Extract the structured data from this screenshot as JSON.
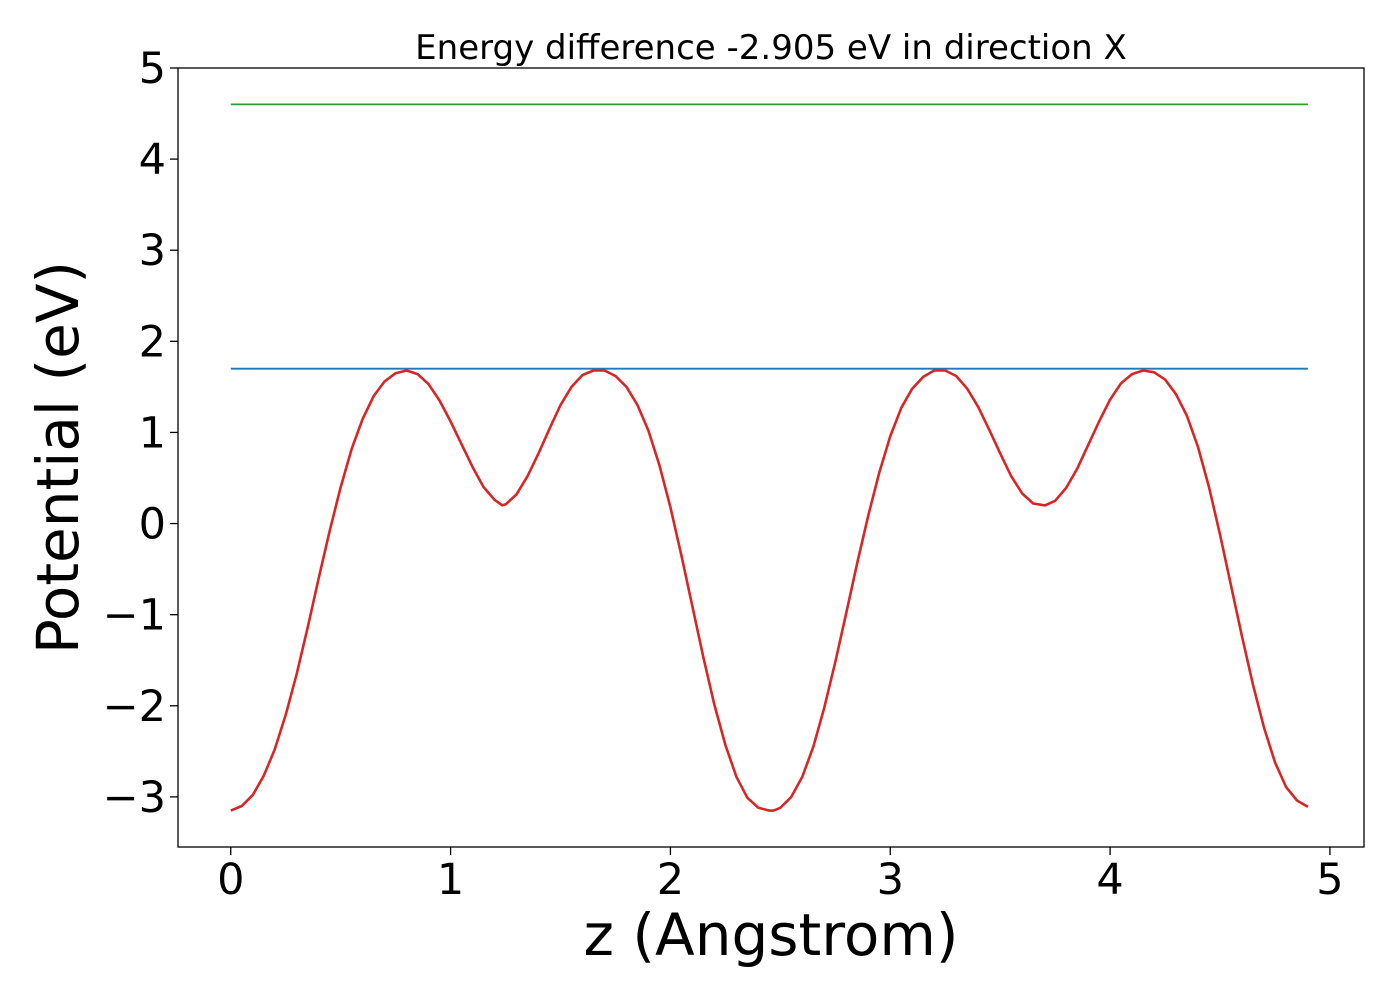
{
  "chart_data": {
    "type": "line",
    "title": "Energy difference -2.905 eV in direction X",
    "xlabel": "z (Angstrom)",
    "ylabel": "Potential (eV)",
    "xlim": [
      -0.24,
      5.155
    ],
    "ylim": [
      -3.55,
      5.0
    ],
    "xticks": [
      0,
      1,
      2,
      3,
      4,
      5
    ],
    "xtick_labels": [
      "0",
      "1",
      "2",
      "3",
      "4",
      "5"
    ],
    "yticks": [
      -3,
      -2,
      -1,
      0,
      1,
      2,
      3,
      4,
      5
    ],
    "ytick_labels": [
      "−3",
      "−2",
      "−1",
      "0",
      "1",
      "2",
      "3",
      "4",
      "5"
    ],
    "grid": false,
    "legend": "none",
    "series": [
      {
        "color": "#d62728",
        "x": [
          0.0,
          0.05,
          0.1,
          0.15,
          0.2,
          0.25,
          0.3,
          0.35,
          0.4,
          0.45,
          0.5,
          0.55,
          0.6,
          0.65,
          0.7,
          0.75,
          0.8,
          0.85,
          0.9,
          0.95,
          1.0,
          1.05,
          1.1,
          1.15,
          1.2,
          1.235,
          1.25,
          1.3,
          1.35,
          1.4,
          1.45,
          1.5,
          1.55,
          1.6,
          1.65,
          1.7,
          1.75,
          1.8,
          1.85,
          1.9,
          1.95,
          2.0,
          2.05,
          2.1,
          2.15,
          2.2,
          2.25,
          2.3,
          2.35,
          2.4,
          2.45,
          2.47,
          2.5,
          2.55,
          2.6,
          2.65,
          2.7,
          2.75,
          2.8,
          2.85,
          2.9,
          2.95,
          3.0,
          3.05,
          3.1,
          3.15,
          3.2,
          3.25,
          3.3,
          3.35,
          3.4,
          3.45,
          3.5,
          3.55,
          3.6,
          3.65,
          3.7,
          3.705,
          3.75,
          3.8,
          3.85,
          3.9,
          3.95,
          4.0,
          4.05,
          4.1,
          4.15,
          4.2,
          4.25,
          4.3,
          4.35,
          4.4,
          4.45,
          4.5,
          4.55,
          4.6,
          4.65,
          4.7,
          4.75,
          4.8,
          4.85,
          4.9
        ],
        "y": [
          -3.15,
          -3.1,
          -2.98,
          -2.77,
          -2.48,
          -2.1,
          -1.65,
          -1.14,
          -0.6,
          -0.08,
          0.4,
          0.82,
          1.15,
          1.4,
          1.56,
          1.65,
          1.68,
          1.64,
          1.53,
          1.35,
          1.12,
          0.87,
          0.62,
          0.4,
          0.26,
          0.2,
          0.21,
          0.32,
          0.52,
          0.77,
          1.04,
          1.3,
          1.5,
          1.63,
          1.68,
          1.68,
          1.62,
          1.5,
          1.3,
          1.02,
          0.64,
          0.18,
          -0.35,
          -0.91,
          -1.47,
          -1.99,
          -2.43,
          -2.78,
          -3.01,
          -3.12,
          -3.15,
          -3.15,
          -3.12,
          -3.0,
          -2.78,
          -2.45,
          -2.02,
          -1.52,
          -0.98,
          -0.43,
          0.09,
          0.56,
          0.96,
          1.27,
          1.48,
          1.61,
          1.68,
          1.68,
          1.62,
          1.48,
          1.28,
          1.03,
          0.77,
          0.52,
          0.33,
          0.22,
          0.2,
          0.2,
          0.25,
          0.39,
          0.6,
          0.86,
          1.12,
          1.36,
          1.54,
          1.64,
          1.68,
          1.66,
          1.58,
          1.42,
          1.18,
          0.84,
          0.4,
          -0.12,
          -0.68,
          -1.24,
          -1.77,
          -2.24,
          -2.62,
          -2.89,
          -3.04,
          -3.11
        ]
      },
      {
        "color": "#1f77b4",
        "x": [
          0.0,
          4.9
        ],
        "y": [
          1.7,
          1.7
        ]
      },
      {
        "color": "#2ca02c",
        "x": [
          0.0,
          4.9
        ],
        "y": [
          4.6,
          4.6
        ]
      }
    ]
  }
}
